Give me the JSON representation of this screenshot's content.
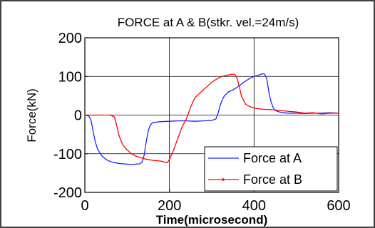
{
  "chart_data": {
    "type": "line",
    "title": "FORCE at A & B(stkr. vel.=24m/s)",
    "xlabel": "Time(microsecond)",
    "ylabel": "Force(kN)",
    "xlim": [
      0,
      600
    ],
    "ylim": [
      -200,
      200
    ],
    "xticks": [
      "0",
      "200",
      "400",
      "600"
    ],
    "yticks": [
      "200",
      "100",
      "0",
      "-100",
      "-200"
    ],
    "grid": true,
    "legend_position": "bottom-right",
    "series": [
      {
        "name": "Force at A",
        "color": "#2020ff",
        "marker": "none",
        "x": [
          0,
          10,
          15,
          20,
          25,
          30,
          40,
          50,
          60,
          70,
          80,
          90,
          100,
          110,
          120,
          130,
          135,
          140,
          145,
          150,
          155,
          160,
          170,
          180,
          200,
          220,
          240,
          260,
          280,
          300,
          310,
          315,
          320,
          325,
          330,
          340,
          350,
          360,
          370,
          380,
          390,
          400,
          410,
          420,
          425,
          430,
          435,
          440,
          445,
          450,
          460,
          470,
          480,
          490,
          500,
          520,
          540,
          560,
          580,
          600
        ],
        "y": [
          0,
          -3,
          -15,
          -45,
          -70,
          -88,
          -105,
          -115,
          -120,
          -123,
          -125,
          -126,
          -127,
          -128,
          -127,
          -126,
          -122,
          -105,
          -70,
          -40,
          -25,
          -20,
          -18,
          -17,
          -16,
          -15,
          -15,
          -16,
          -15,
          -14,
          -10,
          5,
          25,
          40,
          50,
          60,
          65,
          72,
          80,
          88,
          95,
          100,
          103,
          107,
          106,
          95,
          60,
          35,
          20,
          12,
          8,
          6,
          5,
          5,
          5,
          4,
          5,
          5,
          6,
          5
        ]
      },
      {
        "name": "Force at B",
        "color": "#ff0000",
        "marker": "none",
        "x": [
          0,
          20,
          40,
          60,
          70,
          75,
          80,
          85,
          90,
          100,
          110,
          120,
          140,
          160,
          180,
          190,
          195,
          200,
          210,
          220,
          230,
          240,
          245,
          250,
          260,
          270,
          280,
          290,
          300,
          310,
          320,
          330,
          340,
          350,
          355,
          360,
          365,
          370,
          380,
          390,
          400,
          420,
          440,
          460,
          480,
          500,
          520,
          540,
          560,
          580,
          600
        ],
        "y": [
          0,
          0,
          0,
          0,
          -5,
          -25,
          -50,
          -65,
          -78,
          -90,
          -100,
          -106,
          -113,
          -117,
          -119,
          -122,
          -123,
          -115,
          -90,
          -60,
          -30,
          -10,
          5,
          20,
          45,
          55,
          65,
          75,
          85,
          92,
          98,
          102,
          104,
          106,
          105,
          95,
          75,
          50,
          28,
          22,
          18,
          15,
          14,
          12,
          10,
          8,
          5,
          6,
          3,
          5,
          5
        ]
      }
    ],
    "legend": [
      "Force at A",
      "Force at B"
    ]
  }
}
